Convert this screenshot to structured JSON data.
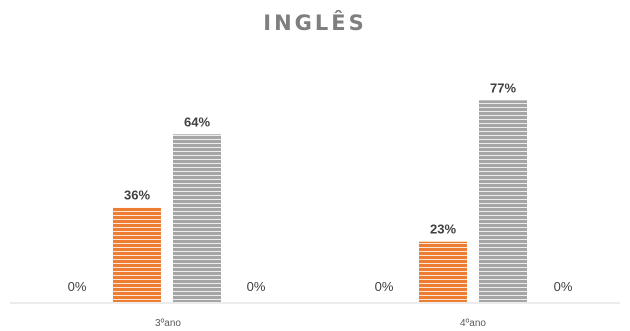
{
  "chart_data": {
    "type": "bar",
    "title": "INGLÊS",
    "categories": [
      "3ºano",
      "4ºano"
    ],
    "series": [
      {
        "values": [
          0,
          0
        ],
        "labels": [
          "0%",
          "0%"
        ],
        "color": "#ed7d31",
        "pattern": "none"
      },
      {
        "values": [
          36,
          23
        ],
        "labels": [
          "36%",
          "23%"
        ],
        "color": "#ed7d31",
        "pattern": "horizontal-stripes"
      },
      {
        "values": [
          64,
          77
        ],
        "labels": [
          "64%",
          "77%"
        ],
        "color": "#a5a5a5",
        "pattern": "horizontal-stripes"
      },
      {
        "values": [
          0,
          0
        ],
        "labels": [
          "0%",
          "0%"
        ],
        "color": "#a5a5a5",
        "pattern": "none"
      }
    ],
    "xlabel": "",
    "ylabel": "",
    "ylim": [
      0,
      100
    ],
    "grid": false,
    "legend": "none",
    "axis_color": "#d9d9d9"
  }
}
